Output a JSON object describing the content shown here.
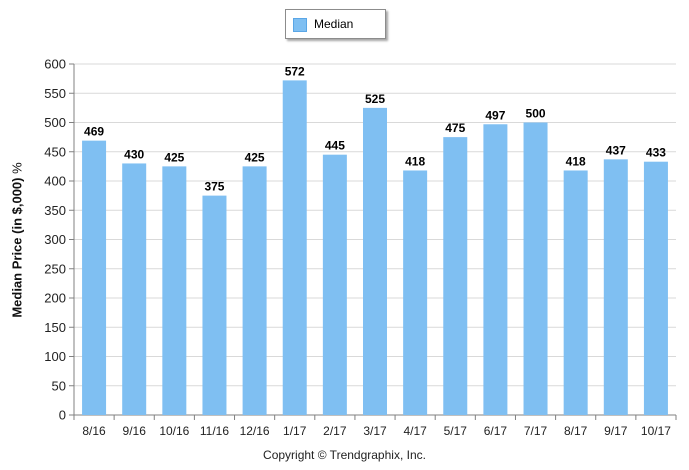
{
  "legend": {
    "label": "Median"
  },
  "chart_data": {
    "type": "bar",
    "categories": [
      "8/16",
      "9/16",
      "10/16",
      "11/16",
      "12/16",
      "1/17",
      "2/17",
      "3/17",
      "4/17",
      "5/17",
      "6/17",
      "7/17",
      "8/17",
      "9/17",
      "10/17"
    ],
    "series": [
      {
        "name": "Median",
        "values": [
          469,
          430,
          425,
          375,
          425,
          572,
          445,
          525,
          418,
          475,
          497,
          500,
          418,
          437,
          433
        ]
      }
    ],
    "ylabel": "Median Price (in $,000)",
    "ylabel_suffix": "%",
    "ylim": [
      0,
      600
    ],
    "yticks": [
      0,
      50,
      100,
      150,
      200,
      250,
      300,
      350,
      400,
      450,
      500,
      550,
      600
    ],
    "grid": true,
    "legend_position": "top",
    "data_labels": true,
    "bar_color": "#7fbff2"
  },
  "footer": {
    "copyright": "Copyright © Trendgraphix, Inc."
  }
}
